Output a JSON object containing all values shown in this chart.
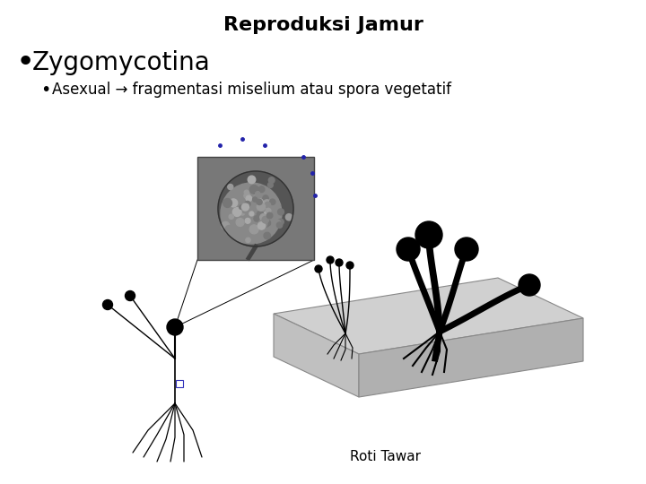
{
  "title": "Reproduksi Jamur",
  "bullet1": "Zygomycotina",
  "bullet2": "Asexual → fragmentasi miselium atau spora vegetatif",
  "caption": "Roti Tawar",
  "bg_color": "#ffffff",
  "title_fontsize": 16,
  "bullet1_fontsize": 20,
  "bullet2_fontsize": 12,
  "caption_fontsize": 11,
  "text_color": "#000000",
  "blue_dot_color": "#2222aa",
  "bread_top_color": "#d0d0d0",
  "bread_front_color": "#c0c0c0",
  "bread_right_color": "#b0b0b0",
  "bread_edge_color": "#888888"
}
